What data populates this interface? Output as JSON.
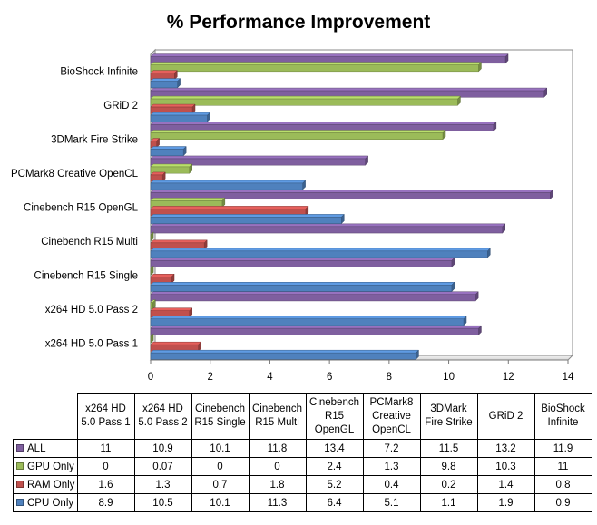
{
  "chart_data": {
    "type": "bar",
    "orientation": "horizontal",
    "title": "% Performance Improvement",
    "categories": [
      "x264 HD 5.0 Pass 1",
      "x264 HD 5.0 Pass 2",
      "Cinebench R15 Single",
      "Cinebench R15 Multi",
      "Cinebench R15 OpenGL",
      "PCMark8 Creative OpenCL",
      "3DMark Fire Strike",
      "GRiD 2",
      "BioShock Infinite"
    ],
    "table_headers": [
      "x264 HD 5.0 Pass 1",
      "x264 HD 5.0 Pass 2",
      "Cinebench R15 Single",
      "Cinebench R15 Multi",
      "Cinebench R15 OpenGL",
      "PCMark8 Creative OpenCL",
      "3DMark Fire Strike",
      "GRiD 2",
      "BioShock Infinite"
    ],
    "series": [
      {
        "name": "ALL",
        "color": "#7F5F9F",
        "values": [
          11,
          10.9,
          10.1,
          11.8,
          13.4,
          7.2,
          11.5,
          13.2,
          11.9
        ]
      },
      {
        "name": "GPU Only",
        "color": "#9BBB59",
        "values": [
          0,
          0.07,
          0,
          0,
          2.4,
          1.3,
          9.8,
          10.3,
          11
        ]
      },
      {
        "name": "RAM Only",
        "color": "#C0504D",
        "values": [
          1.6,
          1.3,
          0.7,
          1.8,
          5.2,
          0.4,
          0.2,
          1.4,
          0.8
        ]
      },
      {
        "name": "CPU Only",
        "color": "#4F81BD",
        "values": [
          8.9,
          10.5,
          10.1,
          11.3,
          6.4,
          5.1,
          1.1,
          1.9,
          0.9
        ]
      }
    ],
    "xlim": [
      0,
      14
    ],
    "x_ticks": [
      "0",
      "2",
      "4",
      "6",
      "8",
      "10",
      "12",
      "14"
    ],
    "grid": false,
    "legend": "data table below chart"
  }
}
